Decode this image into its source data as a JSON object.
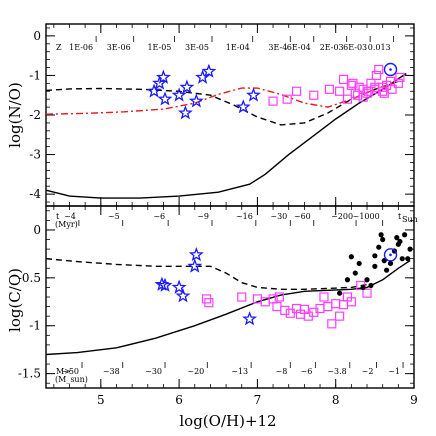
{
  "chart_data": [
    {
      "type": "scatter",
      "panel": "top",
      "ylabel": "log(N/O)",
      "xlabel": "",
      "xlim": [
        4.3,
        9.0
      ],
      "ylim": [
        -4.3,
        0.3
      ],
      "yticks": [
        0,
        -1,
        -2,
        -3,
        -4
      ],
      "xticks": [
        5,
        6,
        7,
        8,
        9
      ],
      "top_axis": {
        "label": "Z",
        "ticks": [
          {
            "x": 4.94,
            "text": "1E-06"
          },
          {
            "x": 5.42,
            "text": "3E-06"
          },
          {
            "x": 5.94,
            "text": "1E-05"
          },
          {
            "x": 6.42,
            "text": "3E-05"
          },
          {
            "x": 6.94,
            "text": "1E-04"
          },
          {
            "x": 7.42,
            "text": "3E-4"
          },
          {
            "x": 7.72,
            "text": "6E-04"
          },
          {
            "x": 8.14,
            "text": "2E-03"
          },
          {
            "x": 8.44,
            "text": "6E-03"
          },
          {
            "x": 8.74,
            "text": "0.013"
          }
        ]
      },
      "series": [
        {
          "marker": "line-solid",
          "x": [
            4.3,
            4.6,
            5.0,
            5.5,
            6.0,
            6.5,
            6.9,
            7.1,
            7.4,
            7.7,
            8.0,
            8.3,
            8.6,
            8.9
          ],
          "y": [
            -3.9,
            -4.05,
            -4.1,
            -4.1,
            -4.05,
            -3.95,
            -3.75,
            -3.5,
            -3.0,
            -2.55,
            -2.1,
            -1.7,
            -1.35,
            -0.95
          ]
        },
        {
          "marker": "line-dashed",
          "x": [
            4.3,
            4.6,
            5.0,
            5.5,
            6.0,
            6.4,
            6.7,
            7.0,
            7.3,
            7.6,
            7.9,
            8.2,
            8.5,
            8.8
          ],
          "y": [
            -1.38,
            -1.34,
            -1.33,
            -1.35,
            -1.4,
            -1.5,
            -1.75,
            -2.05,
            -2.25,
            -2.2,
            -1.95,
            -1.6,
            -1.35,
            -1.15
          ]
        },
        {
          "marker": "line-dashdot",
          "x": [
            4.3,
            4.8,
            5.3,
            5.8,
            6.2,
            6.5,
            6.8,
            7.0,
            7.3,
            7.6,
            7.9,
            8.2,
            8.5,
            8.8
          ],
          "y": [
            -1.98,
            -1.96,
            -1.92,
            -1.85,
            -1.7,
            -1.48,
            -1.32,
            -1.32,
            -1.48,
            -1.7,
            -1.8,
            -1.6,
            -1.35,
            -1.15
          ]
        },
        {
          "marker": "star",
          "color": "#1a1aff",
          "x": [
            5.68,
            5.75,
            5.8,
            5.82,
            6.0,
            6.08,
            6.1,
            6.22,
            6.3,
            6.38,
            6.82,
            6.95
          ],
          "y": [
            -1.4,
            -1.2,
            -1.05,
            -1.6,
            -1.5,
            -1.95,
            -1.3,
            -1.65,
            -1.05,
            -0.9,
            -1.8,
            -1.5
          ]
        },
        {
          "marker": "square",
          "color": "#ff3fff",
          "x": [
            7.2,
            7.38,
            7.5,
            7.72,
            7.92,
            8.05,
            8.1,
            8.2,
            8.22,
            8.28,
            8.3,
            8.35,
            8.4,
            8.42,
            8.45,
            8.5,
            8.52,
            8.55,
            8.6,
            8.62,
            8.65,
            8.7,
            8.72,
            8.8,
            8.82,
            8.6,
            8.5,
            8.35,
            8.25,
            8.15
          ],
          "y": [
            -1.65,
            -1.6,
            -1.4,
            -1.5,
            -1.35,
            -1.4,
            -1.1,
            -1.25,
            -1.2,
            -1.5,
            -1.3,
            -1.55,
            -1.45,
            -1.4,
            -1.2,
            -1.35,
            -1.0,
            -0.85,
            -1.3,
            -1.45,
            -1.25,
            -1.15,
            -1.35,
            -1.2,
            -1.05,
            -1.4,
            -1.3,
            -1.35,
            -1.45,
            -1.6
          ]
        },
        {
          "marker": "sun-circle",
          "color": "#1a1aff",
          "x": [
            8.7
          ],
          "y": [
            -0.85
          ]
        }
      ]
    },
    {
      "type": "scatter",
      "panel": "bottom",
      "ylabel": "log(C/O)",
      "xlabel": "log(O/H)+12",
      "xlim": [
        4.3,
        9.0
      ],
      "ylim": [
        -1.65,
        0.25
      ],
      "yticks": [
        0,
        -0.5,
        -1,
        -1.5
      ],
      "ytick_labels": [
        "0",
        "-0.5",
        "-1",
        "-1.5"
      ],
      "xticks": [
        5,
        6,
        7,
        8,
        9
      ],
      "upper_annotation": {
        "label": "t",
        "unit": "(Myr)",
        "end_label": "t",
        "end_sub": "Sun",
        "ticks": [
          {
            "x": 4.72,
            "text": "~4"
          },
          {
            "x": 5.28,
            "text": "~5"
          },
          {
            "x": 5.86,
            "text": "~6"
          },
          {
            "x": 6.42,
            "text": "~9"
          },
          {
            "x": 6.98,
            "text": "~16"
          },
          {
            "x": 7.42,
            "text": "~30"
          },
          {
            "x": 7.72,
            "text": "~60"
          },
          {
            "x": 8.26,
            "text": "~200"
          },
          {
            "x": 8.6,
            "text": "~1000"
          }
        ]
      },
      "lower_annotation": {
        "label": "M>",
        "unit": "(M_sun)",
        "ticks": [
          {
            "x": 4.76,
            "text": "~50"
          },
          {
            "x": 5.28,
            "text": "~38"
          },
          {
            "x": 5.82,
            "text": "~30"
          },
          {
            "x": 6.36,
            "text": "~20"
          },
          {
            "x": 6.92,
            "text": "~13"
          },
          {
            "x": 7.42,
            "text": "~8"
          },
          {
            "x": 7.74,
            "text": "~6"
          },
          {
            "x": 8.18,
            "text": "~3.8"
          },
          {
            "x": 8.52,
            "text": "~2"
          },
          {
            "x": 8.86,
            "text": "~1"
          }
        ]
      },
      "series": [
        {
          "marker": "line-solid",
          "x": [
            4.3,
            4.7,
            5.2,
            5.7,
            6.2,
            6.6,
            7.0,
            7.3,
            7.6,
            7.9,
            8.2,
            8.4,
            8.6,
            8.8,
            8.95
          ],
          "y": [
            -1.3,
            -1.28,
            -1.23,
            -1.13,
            -1.0,
            -0.88,
            -0.75,
            -0.68,
            -0.64,
            -0.63,
            -0.62,
            -0.6,
            -0.52,
            -0.4,
            -0.32
          ]
        },
        {
          "marker": "line-dashed",
          "x": [
            4.3,
            4.7,
            5.2,
            5.7,
            6.1,
            6.4,
            6.6,
            6.8,
            7.0,
            7.3,
            7.6,
            7.9,
            8.2,
            8.4
          ],
          "y": [
            -0.3,
            -0.33,
            -0.36,
            -0.38,
            -0.38,
            -0.38,
            -0.45,
            -0.55,
            -0.6,
            -0.62,
            -0.62,
            -0.61,
            -0.6,
            -0.57
          ]
        },
        {
          "marker": "star",
          "color": "#1a1aff",
          "x": [
            5.78,
            5.82,
            6.0,
            6.05,
            6.2,
            6.22,
            6.9
          ],
          "y": [
            -0.57,
            -0.58,
            -0.6,
            -0.69,
            -0.38,
            -0.26,
            -0.93
          ]
        },
        {
          "marker": "square",
          "color": "#ff3fff",
          "x": [
            6.35,
            6.8,
            7.0,
            7.1,
            7.2,
            7.28,
            7.35,
            7.42,
            7.5,
            7.55,
            7.6,
            7.65,
            7.72,
            7.8,
            7.85,
            7.9,
            7.95,
            8.0,
            8.05,
            8.1,
            8.15,
            8.2,
            8.32,
            8.4,
            6.38,
            7.25
          ],
          "y": [
            -0.72,
            -0.7,
            -0.72,
            -0.75,
            -0.72,
            -0.7,
            -0.84,
            -0.87,
            -0.82,
            -0.88,
            -0.83,
            -0.9,
            -0.86,
            -0.82,
            -0.7,
            -0.8,
            -0.98,
            -0.77,
            -0.9,
            -0.78,
            -0.7,
            -0.75,
            -0.58,
            -0.66,
            -0.76,
            -0.8
          ]
        },
        {
          "marker": "dot",
          "color": "#000000",
          "x": [
            8.05,
            8.15,
            8.2,
            8.25,
            8.35,
            8.4,
            8.45,
            8.5,
            8.55,
            8.6,
            8.65,
            8.7,
            8.75,
            8.8,
            8.85,
            8.88,
            8.92,
            8.95,
            8.5,
            8.3,
            8.58,
            8.78,
            8.82,
            8.62
          ],
          "y": [
            -0.66,
            -0.52,
            -0.28,
            -0.45,
            -0.6,
            -0.52,
            -0.58,
            -0.27,
            -0.18,
            -0.1,
            -0.42,
            -0.35,
            -0.22,
            -0.15,
            -0.3,
            -0.05,
            -0.3,
            -0.2,
            -0.38,
            -0.35,
            -0.05,
            -0.08,
            -0.12,
            -0.32
          ]
        },
        {
          "marker": "sun-circle",
          "color": "#1a1aff",
          "x": [
            8.7
          ],
          "y": [
            -0.26
          ]
        }
      ]
    }
  ]
}
